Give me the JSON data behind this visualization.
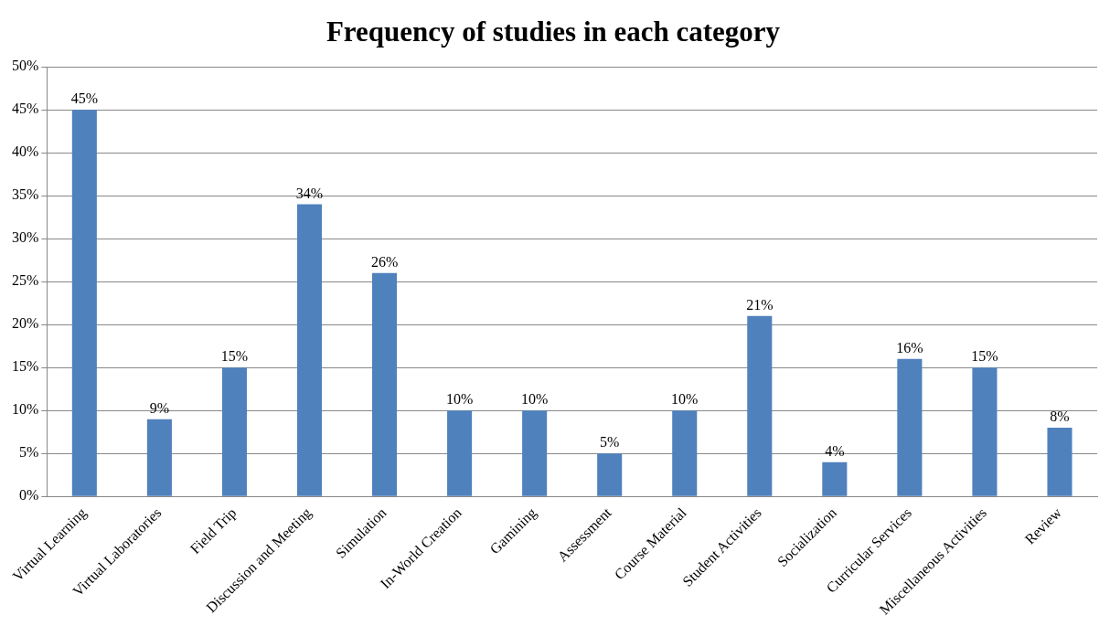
{
  "chart_data": {
    "type": "bar",
    "title": "Frequency of studies in each category",
    "categories": [
      "Virtual Learning",
      "Virtual Laboratories",
      "Field Trip",
      "Discussion and Meeting",
      "Simulation",
      "In-World Creation",
      "Gamining",
      "Assessment",
      "Course Material",
      "Student Activities",
      "Socialization",
      "Curricular Services",
      "Miscellaneous Activities",
      "Review"
    ],
    "values": [
      45,
      9,
      15,
      34,
      26,
      10,
      10,
      5,
      10,
      21,
      4,
      16,
      15,
      8
    ],
    "value_labels": [
      "45%",
      "9%",
      "15%",
      "34%",
      "26%",
      "10%",
      "10%",
      "5%",
      "10%",
      "21%",
      "4%",
      "16%",
      "15%",
      "8%"
    ],
    "color": "#4f81bd",
    "ylim": [
      0,
      50
    ],
    "yticks": [
      {
        "value": 0,
        "label": "0%"
      },
      {
        "value": 5,
        "label": "5%"
      },
      {
        "value": 10,
        "label": "10%"
      },
      {
        "value": 15,
        "label": "15%"
      },
      {
        "value": 20,
        "label": "20%"
      },
      {
        "value": 25,
        "label": "25%"
      },
      {
        "value": 30,
        "label": "30%"
      },
      {
        "value": 35,
        "label": "35%"
      },
      {
        "value": 40,
        "label": "40%"
      },
      {
        "value": 45,
        "label": "45%"
      },
      {
        "value": 50,
        "label": "50%"
      }
    ],
    "grid": "y",
    "legend": false
  }
}
